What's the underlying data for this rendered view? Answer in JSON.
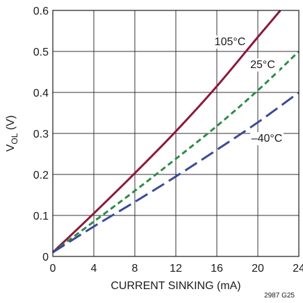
{
  "chart_data": {
    "type": "line",
    "xlabel": "CURRENT SINKING (mA)",
    "ylabel_main": "V",
    "ylabel_sub": "OL",
    "ylabel_unit": " (V)",
    "xlim": [
      0,
      24
    ],
    "ylim": [
      0,
      0.6
    ],
    "x_ticks": [
      0,
      4,
      8,
      12,
      16,
      20,
      24
    ],
    "y_ticks": [
      0,
      0.1,
      0.2,
      0.3,
      0.4,
      0.5,
      0.6
    ],
    "x_tick_labels": [
      "0",
      "4",
      "8",
      "12",
      "16",
      "20",
      "24"
    ],
    "y_tick_labels": [
      "0",
      "0.1",
      "0.2",
      "0.3",
      "0.4",
      "0.5",
      "0.6"
    ],
    "grid": true,
    "figure_id": "2987 G25",
    "series": [
      {
        "name": "105°C",
        "color": "#8b1a3a",
        "dash": "solid",
        "x": [
          0,
          4,
          8,
          12,
          16,
          20,
          22.2
        ],
        "y": [
          0.01,
          0.105,
          0.203,
          0.305,
          0.415,
          0.535,
          0.6
        ]
      },
      {
        "name": "25°C",
        "color": "#2e8b4a",
        "dash": "short",
        "x": [
          0,
          4,
          8,
          12,
          16,
          20,
          24
        ],
        "y": [
          0.01,
          0.085,
          0.16,
          0.238,
          0.318,
          0.405,
          0.5
        ]
      },
      {
        "name": "–40°C",
        "color": "#3a4a9a",
        "dash": "long",
        "x": [
          0,
          4,
          8,
          12,
          16,
          20,
          24
        ],
        "y": [
          0.01,
          0.073,
          0.133,
          0.195,
          0.26,
          0.327,
          0.4
        ]
      }
    ]
  }
}
